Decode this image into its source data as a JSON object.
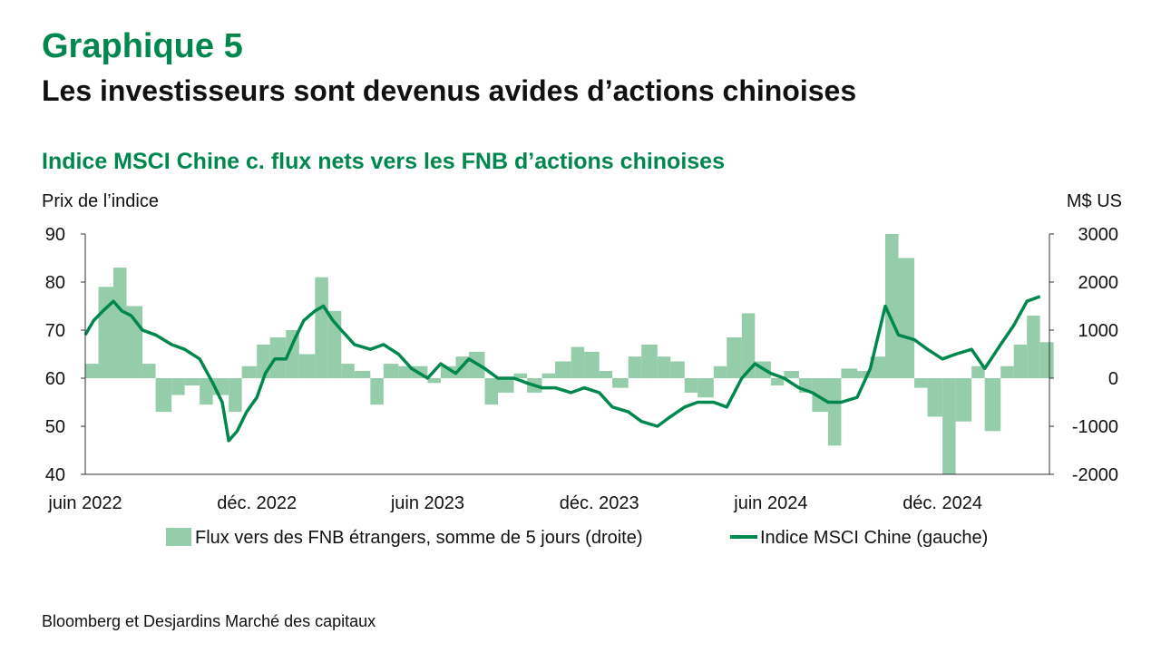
{
  "header": {
    "label": "Graphique 5",
    "title": "Les investisseurs sont devenus avides d’actions chinoises",
    "subtitle": "Indice MSCI Chine c. flux nets vers les FNB d’actions chinoises"
  },
  "source": "Bloomberg et Desjardins Marché des capitaux",
  "colors": {
    "accent": "#00874E",
    "bars": "#95CCA9",
    "line": "#00874E"
  },
  "chart_data": {
    "type": "bar+line",
    "ylabel_left": "Prix de l’indice",
    "ylabel_right": "M$ US",
    "ylim_left": [
      40,
      90
    ],
    "ylim_right": [
      -2000,
      3000
    ],
    "yticks_left": [
      "90",
      "80",
      "70",
      "60",
      "50",
      "40"
    ],
    "yticks_right": [
      "3000",
      "2000",
      "1000",
      "0",
      "-1000",
      "-2000"
    ],
    "xticks": [
      "juin 2022",
      "déc. 2022",
      "juin 2023",
      "déc. 2023",
      "juin 2024",
      "déc. 2024"
    ],
    "x_range": [
      "2022-06",
      "2025-03"
    ],
    "legend_position": "bottom",
    "series": [
      {
        "name": "Flux vers des FNB étrangers, somme de 5 jours (droite)",
        "type": "bar",
        "axis": "right",
        "points": [
          [
            "2022-06",
            300
          ],
          [
            "2022-06-15",
            1900
          ],
          [
            "2022-07",
            2300
          ],
          [
            "2022-07-15",
            1500
          ],
          [
            "2022-08",
            300
          ],
          [
            "2022-08-15",
            -700
          ],
          [
            "2022-09",
            -350
          ],
          [
            "2022-09-15",
            -150
          ],
          [
            "2022-10",
            -550
          ],
          [
            "2022-10-15",
            -350
          ],
          [
            "2022-11",
            -700
          ],
          [
            "2022-11-15",
            250
          ],
          [
            "2022-12",
            700
          ],
          [
            "2022-12-15",
            850
          ],
          [
            "2023-01",
            1000
          ],
          [
            "2023-01-15",
            500
          ],
          [
            "2023-02",
            2100
          ],
          [
            "2023-02-15",
            1400
          ],
          [
            "2023-03",
            300
          ],
          [
            "2023-03-15",
            150
          ],
          [
            "2023-04",
            -550
          ],
          [
            "2023-04-15",
            300
          ],
          [
            "2023-05",
            250
          ],
          [
            "2023-05-15",
            250
          ],
          [
            "2023-06",
            -100
          ],
          [
            "2023-06-15",
            250
          ],
          [
            "2023-07",
            450
          ],
          [
            "2023-07-15",
            550
          ],
          [
            "2023-08",
            -550
          ],
          [
            "2023-08-15",
            -300
          ],
          [
            "2023-09",
            100
          ],
          [
            "2023-09-15",
            -300
          ],
          [
            "2023-10",
            100
          ],
          [
            "2023-10-15",
            350
          ],
          [
            "2023-11",
            650
          ],
          [
            "2023-11-15",
            550
          ],
          [
            "2023-12",
            150
          ],
          [
            "2023-12-15",
            -200
          ],
          [
            "2024-01",
            450
          ],
          [
            "2024-01-15",
            700
          ],
          [
            "2024-02",
            450
          ],
          [
            "2024-02-15",
            350
          ],
          [
            "2024-03",
            -300
          ],
          [
            "2024-03-15",
            -400
          ],
          [
            "2024-04",
            250
          ],
          [
            "2024-04-15",
            850
          ],
          [
            "2024-05",
            1350
          ],
          [
            "2024-05-15",
            350
          ],
          [
            "2024-06",
            -150
          ],
          [
            "2024-06-15",
            150
          ],
          [
            "2024-07",
            -300
          ],
          [
            "2024-07-15",
            -700
          ],
          [
            "2024-08",
            -1400
          ],
          [
            "2024-08-15",
            200
          ],
          [
            "2024-09",
            150
          ],
          [
            "2024-09-15",
            450
          ],
          [
            "2024-10",
            3000
          ],
          [
            "2024-10-15",
            2500
          ],
          [
            "2024-11",
            -200
          ],
          [
            "2024-11-15",
            -800
          ],
          [
            "2024-12",
            -2000
          ],
          [
            "2024-12-15",
            -900
          ],
          [
            "2025-01",
            250
          ],
          [
            "2025-01-15",
            -1100
          ],
          [
            "2025-02",
            250
          ],
          [
            "2025-02-15",
            700
          ],
          [
            "2025-03",
            1300
          ],
          [
            "2025-03-15",
            750
          ]
        ]
      },
      {
        "name": "Indice MSCI Chine (gauche)",
        "type": "line",
        "axis": "left",
        "points": [
          [
            "2022-06",
            69
          ],
          [
            "2022-06-10",
            72
          ],
          [
            "2022-06-20",
            74
          ],
          [
            "2022-07",
            76
          ],
          [
            "2022-07-10",
            74
          ],
          [
            "2022-07-20",
            73
          ],
          [
            "2022-08",
            70
          ],
          [
            "2022-08-15",
            69
          ],
          [
            "2022-09",
            67
          ],
          [
            "2022-09-15",
            66
          ],
          [
            "2022-10",
            64
          ],
          [
            "2022-10-15",
            59
          ],
          [
            "2022-10-25",
            55
          ],
          [
            "2022-11",
            47
          ],
          [
            "2022-11-10",
            49
          ],
          [
            "2022-11-20",
            53
          ],
          [
            "2022-12",
            56
          ],
          [
            "2022-12-10",
            61
          ],
          [
            "2022-12-20",
            64
          ],
          [
            "2023-01",
            64
          ],
          [
            "2023-01-10",
            68
          ],
          [
            "2023-01-20",
            72
          ],
          [
            "2023-02",
            74
          ],
          [
            "2023-02-10",
            75
          ],
          [
            "2023-02-20",
            72
          ],
          [
            "2023-03",
            70
          ],
          [
            "2023-03-15",
            67
          ],
          [
            "2023-04",
            66
          ],
          [
            "2023-04-15",
            67
          ],
          [
            "2023-05",
            65
          ],
          [
            "2023-05-15",
            62
          ],
          [
            "2023-06",
            60
          ],
          [
            "2023-06-15",
            63
          ],
          [
            "2023-07",
            61
          ],
          [
            "2023-07-15",
            64
          ],
          [
            "2023-08",
            62
          ],
          [
            "2023-08-15",
            60
          ],
          [
            "2023-09",
            60
          ],
          [
            "2023-09-15",
            59
          ],
          [
            "2023-10",
            58
          ],
          [
            "2023-10-15",
            58
          ],
          [
            "2023-11",
            57
          ],
          [
            "2023-11-15",
            58
          ],
          [
            "2023-12",
            57
          ],
          [
            "2023-12-15",
            54
          ],
          [
            "2024-01",
            53
          ],
          [
            "2024-01-15",
            51
          ],
          [
            "2024-02",
            50
          ],
          [
            "2024-02-15",
            52
          ],
          [
            "2024-03",
            54
          ],
          [
            "2024-03-15",
            55
          ],
          [
            "2024-04",
            55
          ],
          [
            "2024-04-15",
            54
          ],
          [
            "2024-05",
            60
          ],
          [
            "2024-05-15",
            63
          ],
          [
            "2024-06",
            61
          ],
          [
            "2024-06-15",
            60
          ],
          [
            "2024-07",
            58
          ],
          [
            "2024-07-15",
            57
          ],
          [
            "2024-08",
            55
          ],
          [
            "2024-08-15",
            55
          ],
          [
            "2024-09",
            56
          ],
          [
            "2024-09-15",
            62
          ],
          [
            "2024-10",
            75
          ],
          [
            "2024-10-15",
            69
          ],
          [
            "2024-11",
            68
          ],
          [
            "2024-11-15",
            66
          ],
          [
            "2024-12",
            64
          ],
          [
            "2024-12-15",
            65
          ],
          [
            "2025-01",
            66
          ],
          [
            "2025-01-15",
            62
          ],
          [
            "2025-02",
            67
          ],
          [
            "2025-02-15",
            71
          ],
          [
            "2025-03",
            76
          ],
          [
            "2025-03-15",
            77
          ]
        ]
      }
    ]
  }
}
